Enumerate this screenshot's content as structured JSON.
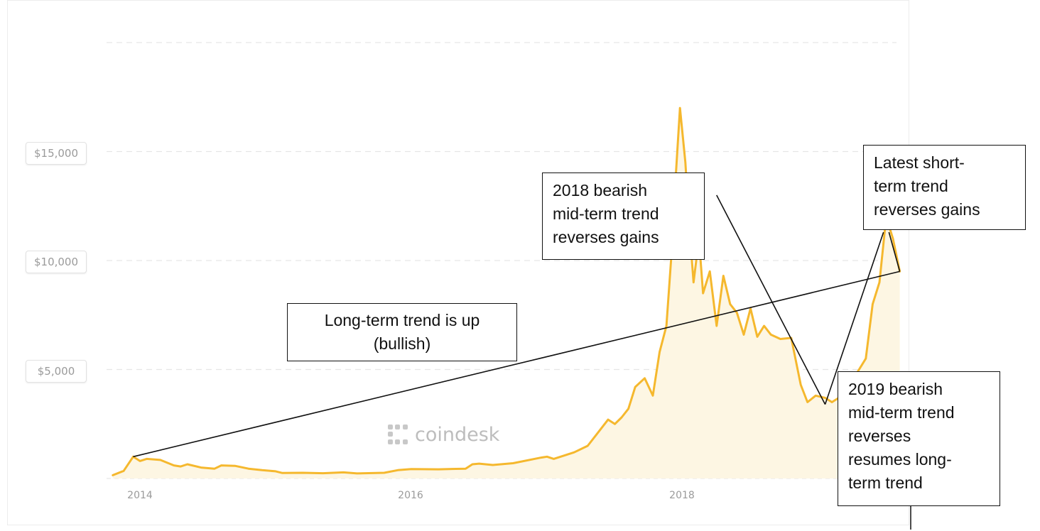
{
  "chart_data": {
    "type": "area",
    "brand": "coindesk",
    "line_color": "#f5b82e",
    "fill_color": "#fdf6e3",
    "grid": "horizontal-dashed",
    "ylim": [
      0,
      20000
    ],
    "xlim": [
      2013.8,
      2019.6
    ],
    "y_ticks": [
      {
        "value": 5000,
        "label": "$5,000"
      },
      {
        "value": 10000,
        "label": "$10,000"
      },
      {
        "value": 15000,
        "label": "$15,000"
      }
    ],
    "x_ticks": [
      {
        "value": 2014,
        "label": "2014"
      },
      {
        "value": 2016,
        "label": "2016"
      },
      {
        "value": 2018,
        "label": "2018"
      }
    ],
    "series": [
      {
        "values": [
          [
            2013.8,
            150
          ],
          [
            2013.88,
            350
          ],
          [
            2013.95,
            1000
          ],
          [
            2014.0,
            800
          ],
          [
            2014.05,
            900
          ],
          [
            2014.15,
            850
          ],
          [
            2014.25,
            600
          ],
          [
            2014.3,
            550
          ],
          [
            2014.35,
            650
          ],
          [
            2014.45,
            500
          ],
          [
            2014.55,
            450
          ],
          [
            2014.6,
            600
          ],
          [
            2014.7,
            580
          ],
          [
            2014.8,
            450
          ],
          [
            2014.9,
            380
          ],
          [
            2015.0,
            330
          ],
          [
            2015.05,
            250
          ],
          [
            2015.2,
            260
          ],
          [
            2015.35,
            240
          ],
          [
            2015.5,
            280
          ],
          [
            2015.6,
            230
          ],
          [
            2015.8,
            260
          ],
          [
            2015.9,
            380
          ],
          [
            2016.0,
            430
          ],
          [
            2016.2,
            420
          ],
          [
            2016.4,
            450
          ],
          [
            2016.45,
            650
          ],
          [
            2016.5,
            680
          ],
          [
            2016.6,
            620
          ],
          [
            2016.75,
            700
          ],
          [
            2016.95,
            950
          ],
          [
            2017.0,
            1000
          ],
          [
            2017.05,
            900
          ],
          [
            2017.2,
            1200
          ],
          [
            2017.3,
            1500
          ],
          [
            2017.4,
            2300
          ],
          [
            2017.45,
            2700
          ],
          [
            2017.5,
            2500
          ],
          [
            2017.55,
            2800
          ],
          [
            2017.6,
            3200
          ],
          [
            2017.65,
            4200
          ],
          [
            2017.72,
            4600
          ],
          [
            2017.78,
            3800
          ],
          [
            2017.83,
            5800
          ],
          [
            2017.88,
            7000
          ],
          [
            2017.92,
            10500
          ],
          [
            2017.95,
            14000
          ],
          [
            2017.98,
            17000
          ],
          [
            2018.02,
            14500
          ],
          [
            2018.05,
            11500
          ],
          [
            2018.08,
            9000
          ],
          [
            2018.12,
            11000
          ],
          [
            2018.15,
            8500
          ],
          [
            2018.2,
            9500
          ],
          [
            2018.25,
            7000
          ],
          [
            2018.3,
            9300
          ],
          [
            2018.35,
            8000
          ],
          [
            2018.4,
            7600
          ],
          [
            2018.45,
            6600
          ],
          [
            2018.5,
            7800
          ],
          [
            2018.55,
            6500
          ],
          [
            2018.6,
            7000
          ],
          [
            2018.65,
            6600
          ],
          [
            2018.72,
            6400
          ],
          [
            2018.8,
            6450
          ],
          [
            2018.87,
            4300
          ],
          [
            2018.92,
            3500
          ],
          [
            2018.98,
            3800
          ],
          [
            2019.05,
            3700
          ],
          [
            2019.1,
            3500
          ],
          [
            2019.15,
            3700
          ],
          [
            2019.2,
            4000
          ],
          [
            2019.3,
            5000
          ],
          [
            2019.35,
            5500
          ],
          [
            2019.4,
            8000
          ],
          [
            2019.45,
            9000
          ],
          [
            2019.5,
            12000
          ],
          [
            2019.55,
            11000
          ],
          [
            2019.6,
            9500
          ]
        ]
      }
    ],
    "annotations": [
      {
        "id": "long-term",
        "label": "Long-term trend is up (bullish)",
        "lines": [
          "Long-term trend is up",
          "(bullish)"
        ],
        "from": [
          2013.95,
          1000
        ],
        "to": [
          2019.6,
          9500
        ]
      },
      {
        "id": "2018-bearish",
        "label": "2018 bearish mid-term trend reverses gains",
        "lines": [
          "2018 bearish",
          "mid-term trend",
          "reverses gains"
        ],
        "from": [
          2018.25,
          13000
        ],
        "to": [
          2019.05,
          3400
        ]
      },
      {
        "id": "short-term",
        "label": "Latest short-term trend reverses gains",
        "lines": [
          "Latest short-",
          "term trend",
          "reverses gains"
        ],
        "from": [
          2019.52,
          11300
        ],
        "to": [
          2019.6,
          9500
        ]
      },
      {
        "id": "2019-bearish",
        "label": "2019 bearish mid-term trend reverses resumes long-term trend",
        "lines": [
          "2019 bearish",
          "mid-term trend",
          "reverses",
          "resumes long-",
          "term trend"
        ],
        "from": [
          2019.05,
          3400
        ],
        "to": [
          2019.48,
          11300
        ]
      }
    ]
  }
}
